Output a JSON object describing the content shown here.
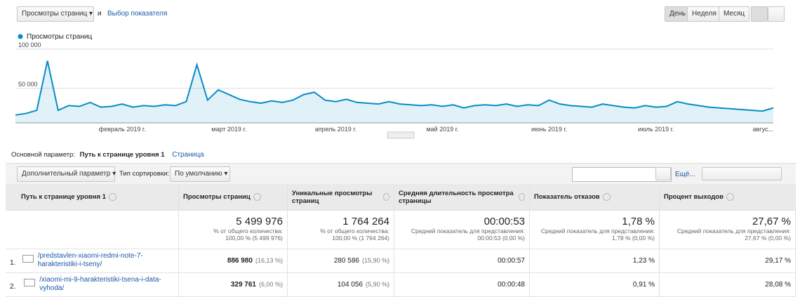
{
  "toolbar": {
    "metric_select": "Просмотры страниц",
    "and": "и",
    "pick_metric": "Выбор показателя",
    "periods": [
      "День",
      "Неделя",
      "Месяц"
    ]
  },
  "chart_data": {
    "type": "area",
    "series": [
      {
        "name": "Просмотры страниц",
        "color": "#058dc7",
        "values": [
          16000,
          18000,
          22000,
          85000,
          22000,
          28000,
          27000,
          32000,
          26000,
          27000,
          30000,
          26000,
          28000,
          27000,
          29000,
          28000,
          33000,
          80000,
          35000,
          48000,
          42000,
          36000,
          33000,
          31000,
          34000,
          32000,
          35000,
          42000,
          45000,
          35000,
          33000,
          36000,
          32000,
          31000,
          30000,
          33000,
          30000,
          29000,
          28000,
          29000,
          27000,
          29000,
          25000,
          28000,
          29000,
          28000,
          30000,
          27000,
          29000,
          28000,
          35000,
          30000,
          28000,
          27000,
          26000,
          30000,
          28000,
          26000,
          25000,
          28000,
          26000,
          27000,
          33000,
          30000,
          28000,
          26000,
          25000,
          24000,
          23000,
          22000,
          21000,
          25000
        ]
      }
    ],
    "categories": [
      null,
      null,
      null,
      null,
      null,
      null,
      null,
      null,
      null,
      null,
      "февраль 2019 г.",
      null,
      null,
      null,
      null,
      null,
      null,
      null,
      null,
      null,
      "март 2019 г.",
      null,
      null,
      null,
      null,
      null,
      null,
      null,
      null,
      null,
      "апрель 2019 г.",
      null,
      null,
      null,
      null,
      null,
      null,
      null,
      null,
      null,
      "май 2019 г.",
      null,
      null,
      null,
      null,
      null,
      null,
      null,
      null,
      null,
      "июнь 2019 г.",
      null,
      null,
      null,
      null,
      null,
      null,
      null,
      null,
      null,
      "июль 2019 г.",
      null,
      null,
      null,
      null,
      null,
      null,
      null,
      null,
      null,
      null,
      "авгус..."
    ],
    "ylim": [
      6000,
      107000
    ],
    "yticks": [
      {
        "value": 50000,
        "label": "50 000"
      },
      {
        "value": 100000,
        "label": "100 000"
      }
    ],
    "grid": true
  },
  "dimension_bar": {
    "label": "Основной параметр:",
    "active": "Путь к странице уровня 1",
    "other": "Страница"
  },
  "filters": {
    "secondary": "Дополнительный параметр",
    "sort_label": "Тип сортировки:",
    "sort_value": "По умолчанию",
    "more": "Ещё..."
  },
  "table": {
    "headers": [
      "Путь к странице уровня 1",
      "Просмотры страниц",
      "Уникальные просмотры страниц",
      "Средняя длительность просмотра страницы",
      "Показатель отказов",
      "Процент выходов"
    ],
    "totals": [
      [
        "5 499 976",
        "% от общего количества:",
        "100,00 % (5 499 976)"
      ],
      [
        "1 764 264",
        "% от общего количества:",
        "100,00 % (1 764 264)"
      ],
      [
        "00:00:53",
        "Средний показатель для представления:",
        "00:00:53 (0,00 %)"
      ],
      [
        "1,78 %",
        "Средний показатель для представления:",
        "1,78 % (0,00 %)"
      ],
      [
        "27,67 %",
        "Средний показатель для представления:",
        "27,67 % (0,00 %)"
      ]
    ],
    "rows": [
      {
        "index": "1.",
        "path": "/predstavlen-xiaomi-redmi-note-7-harakteristiki-i-tseny/",
        "cells": [
          [
            "886 980",
            "(16,13 %)"
          ],
          [
            "280 586",
            "(15,90 %)"
          ],
          [
            "00:00:57"
          ],
          [
            "1,23 %"
          ],
          [
            "29,17 %"
          ]
        ]
      },
      {
        "index": "2.",
        "path": "/xiaomi-mi-9-harakteristiki-tsena-i-data-vyhoda/",
        "cells": [
          [
            "329 761",
            "(6,00 %)"
          ],
          [
            "104 056",
            "(5,90 %)"
          ],
          [
            "00:00:48"
          ],
          [
            "0,91 %"
          ],
          [
            "28,08 %"
          ]
        ]
      }
    ]
  }
}
